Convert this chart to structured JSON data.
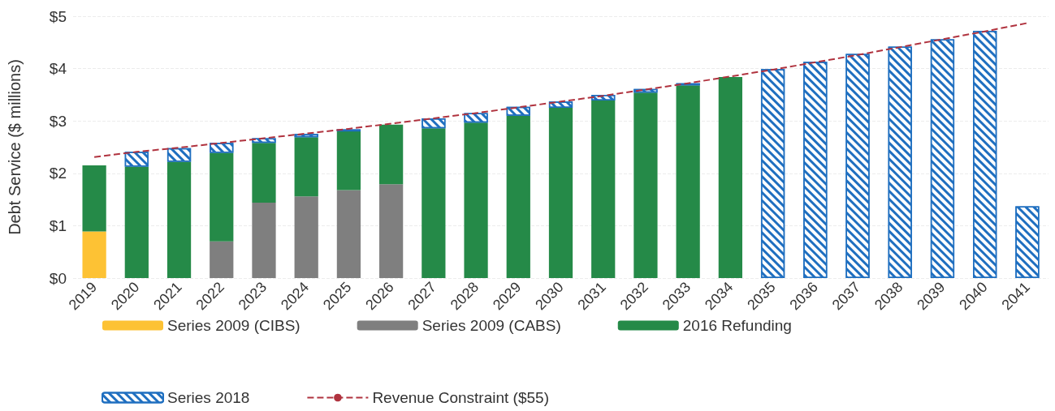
{
  "chart_data": {
    "type": "bar",
    "stacked": true,
    "ylabel": "Debt Service ($ millions)",
    "categories": [
      "2019",
      "2020",
      "2021",
      "2022",
      "2023",
      "2024",
      "2025",
      "2026",
      "2027",
      "2028",
      "2029",
      "2030",
      "2031",
      "2032",
      "2033",
      "2034",
      "2035",
      "2036",
      "2037",
      "2038",
      "2039",
      "2040",
      "2041"
    ],
    "series": [
      {
        "name": "Series 2009 (CIBS)",
        "color": "#fdc234",
        "values": [
          0.89,
          0,
          0,
          0,
          0,
          0,
          0,
          0,
          0,
          0,
          0,
          0,
          0,
          0,
          0,
          0,
          0,
          0,
          0,
          0,
          0,
          0,
          0
        ]
      },
      {
        "name": "Series 2009 (CABS)",
        "color": "#7f7f7f",
        "values": [
          0,
          0,
          0,
          0.7,
          1.44,
          1.56,
          1.68,
          1.79,
          0,
          0,
          0,
          0,
          0,
          0,
          0,
          0,
          0,
          0,
          0,
          0,
          0,
          0,
          0
        ]
      },
      {
        "name": "2016 Refunding",
        "color": "#258a48",
        "values": [
          1.26,
          2.13,
          2.22,
          1.69,
          1.14,
          1.13,
          1.12,
          1.14,
          2.86,
          2.97,
          3.1,
          3.25,
          3.39,
          3.54,
          3.68,
          3.84,
          0,
          0,
          0,
          0,
          0,
          0,
          0
        ]
      },
      {
        "name": "Series 2018",
        "color": "#1f6fc0",
        "values": [
          0,
          0.28,
          0.26,
          0.19,
          0.09,
          0.06,
          0.04,
          null,
          0.19,
          0.18,
          0.17,
          0.12,
          0.11,
          0.07,
          0.04,
          0,
          3.99,
          4.13,
          4.28,
          4.42,
          4.56,
          4.72,
          1.37
        ]
      },
      {
        "name": "Revenue Constraint ($55)",
        "type": "line",
        "color": "#b0333f",
        "line_style": "dashed",
        "marker": "none",
        "values": [
          2.31,
          2.41,
          2.49,
          2.58,
          2.67,
          2.76,
          2.85,
          2.95,
          3.05,
          3.15,
          3.26,
          3.37,
          3.48,
          3.6,
          3.72,
          3.85,
          3.98,
          4.12,
          4.26,
          4.41,
          4.56,
          4.71,
          4.87
        ]
      }
    ],
    "ylim": [
      0,
      5
    ],
    "yticks": [
      {
        "value": 0,
        "label": "$0"
      },
      {
        "value": 1,
        "label": "$1"
      },
      {
        "value": 2,
        "label": "$2"
      },
      {
        "value": 3,
        "label": "$3"
      },
      {
        "value": 4,
        "label": "$4"
      },
      {
        "value": 5,
        "label": "$5"
      }
    ],
    "grid": "y",
    "legend": "bottom"
  }
}
